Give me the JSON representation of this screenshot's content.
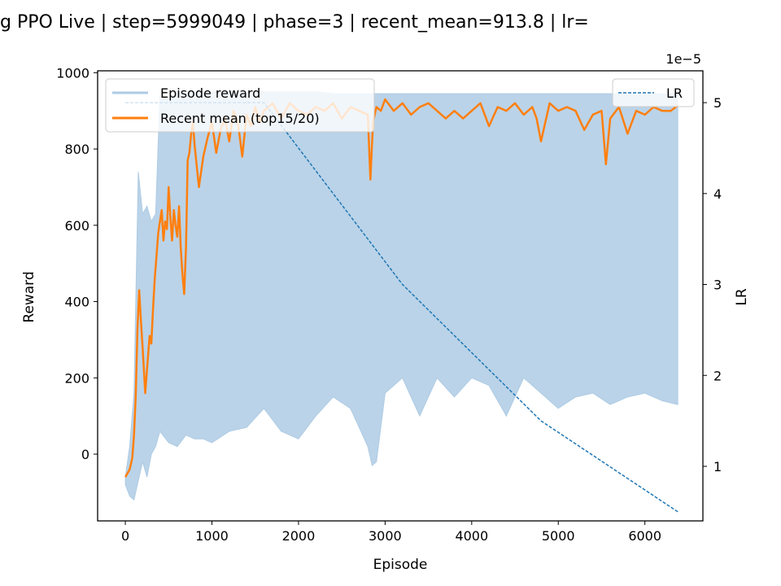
{
  "chart_data": {
    "type": "line",
    "title": "g PPO Live | step=5999049 | phase=3 | recent_mean=913.8 | lr=",
    "xlabel": "Episode",
    "ylabel": "Reward",
    "y2label": "LR",
    "y2_multiplier_label": "1e−5",
    "xlim": [
      -320,
      6670
    ],
    "ylim": [
      -175,
      1005
    ],
    "y2lim": [
      0.4,
      5.35
    ],
    "x_ticks": [
      0,
      1000,
      2000,
      3000,
      4000,
      5000,
      6000
    ],
    "y_ticks": [
      0,
      200,
      400,
      600,
      800,
      1000
    ],
    "y2_ticks": [
      1,
      2,
      3,
      4,
      5
    ],
    "grid": false,
    "legend_left": "top-left",
    "legend_right": "top-right",
    "series": [
      {
        "name": "Episode reward",
        "axis": "left",
        "style": "light-blue-filled-noise",
        "color": "#aecbe4",
        "x": [
          0,
          50,
          100,
          150,
          200,
          250,
          300,
          350,
          400,
          500,
          600,
          700,
          800,
          900,
          1000,
          1200,
          1400,
          1600,
          1800,
          2000,
          2200,
          2400,
          2600,
          2800,
          2850,
          2900,
          3000,
          3200,
          3400,
          3600,
          3800,
          4000,
          4200,
          4400,
          4600,
          4800,
          5000,
          5200,
          5400,
          5600,
          5800,
          6000,
          6200,
          6380
        ],
        "high": [
          -60,
          20,
          160,
          740,
          630,
          650,
          610,
          630,
          940,
          930,
          950,
          950,
          950,
          950,
          950,
          950,
          950,
          950,
          950,
          950,
          950,
          945,
          945,
          945,
          945,
          945,
          945,
          945,
          945,
          945,
          945,
          945,
          945,
          945,
          945,
          945,
          945,
          945,
          945,
          945,
          945,
          945,
          945,
          945
        ],
        "low": [
          -80,
          -110,
          -120,
          -70,
          -20,
          -60,
          0,
          20,
          60,
          30,
          20,
          50,
          40,
          40,
          30,
          60,
          70,
          120,
          60,
          40,
          100,
          150,
          120,
          20,
          -30,
          -20,
          160,
          200,
          100,
          200,
          150,
          200,
          180,
          100,
          200,
          160,
          120,
          150,
          160,
          130,
          150,
          160,
          140,
          130
        ]
      },
      {
        "name": "Recent mean (top15/20)",
        "axis": "left",
        "color": "#ff7f0e",
        "x": [
          0,
          50,
          80,
          100,
          120,
          140,
          160,
          180,
          200,
          230,
          260,
          280,
          300,
          320,
          340,
          360,
          380,
          400,
          420,
          440,
          460,
          480,
          500,
          520,
          540,
          560,
          580,
          600,
          620,
          640,
          660,
          680,
          700,
          720,
          740,
          760,
          780,
          800,
          850,
          900,
          950,
          1000,
          1050,
          1100,
          1150,
          1200,
          1250,
          1300,
          1350,
          1400,
          1450,
          1500,
          1550,
          1600,
          1700,
          1800,
          1900,
          2000,
          2100,
          2200,
          2300,
          2400,
          2500,
          2600,
          2700,
          2800,
          2830,
          2860,
          2900,
          2950,
          3000,
          3100,
          3200,
          3300,
          3400,
          3500,
          3600,
          3700,
          3800,
          3900,
          4000,
          4100,
          4200,
          4300,
          4400,
          4500,
          4600,
          4700,
          4750,
          4800,
          4900,
          5000,
          5100,
          5200,
          5300,
          5400,
          5500,
          5550,
          5600,
          5700,
          5800,
          5900,
          6000,
          6100,
          6200,
          6300,
          6380
        ],
        "y": [
          -60,
          -40,
          -10,
          50,
          150,
          330,
          430,
          350,
          280,
          160,
          250,
          310,
          290,
          380,
          460,
          520,
          580,
          610,
          640,
          560,
          610,
          590,
          700,
          620,
          560,
          640,
          600,
          570,
          650,
          540,
          470,
          420,
          540,
          770,
          790,
          840,
          870,
          810,
          700,
          780,
          830,
          870,
          790,
          850,
          880,
          820,
          900,
          870,
          780,
          890,
          860,
          910,
          870,
          900,
          920,
          880,
          920,
          900,
          890,
          910,
          900,
          920,
          880,
          910,
          900,
          890,
          720,
          870,
          910,
          900,
          930,
          900,
          920,
          890,
          910,
          920,
          900,
          880,
          900,
          880,
          900,
          920,
          860,
          910,
          900,
          920,
          890,
          910,
          880,
          820,
          920,
          900,
          910,
          900,
          850,
          890,
          900,
          760,
          880,
          910,
          840,
          900,
          890,
          910,
          900,
          900,
          914
        ]
      },
      {
        "name": "LR",
        "axis": "right",
        "style": "dashed",
        "color": "#1f77b4",
        "x": [
          0,
          1600,
          2400,
          3200,
          4800,
          6380
        ],
        "y": [
          5.0,
          5.0,
          4.0,
          3.0,
          1.5,
          0.5
        ]
      }
    ]
  }
}
